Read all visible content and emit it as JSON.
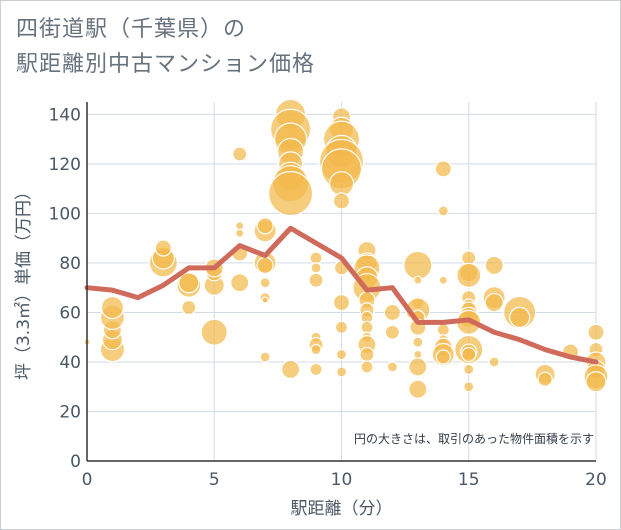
{
  "title": {
    "line1": "四街道駅（千葉県）の",
    "line2": "駅距離別中古マンション価格"
  },
  "colors": {
    "bubble": "#f2b84b",
    "bubble_stroke": "#ffffff",
    "line": "#d06a5a",
    "grid": "#d3dbe6",
    "axis": "#333333"
  },
  "chart_data": {
    "type": "scatter",
    "xlabel": "駅距離（分）",
    "ylabel": "坪（3.3㎡）単価（万円）",
    "xlim": [
      0,
      20
    ],
    "ylim": [
      0,
      145
    ],
    "xticks": [
      0,
      5,
      10,
      15,
      20
    ],
    "yticks": [
      0,
      20,
      40,
      60,
      80,
      100,
      120,
      140
    ],
    "grid": true,
    "note": "円の大きさは、取引のあった物件面積を示す",
    "line_series": {
      "x": [
        0,
        1,
        2,
        3,
        4,
        5,
        6,
        7,
        8,
        9,
        10,
        11,
        12,
        13,
        14,
        15,
        16,
        17,
        18,
        19,
        20
      ],
      "y": [
        70,
        69,
        66,
        71,
        78,
        78,
        87,
        83,
        94,
        88,
        82,
        69,
        70,
        56,
        56,
        57,
        52,
        49,
        45,
        42,
        40
      ]
    },
    "bubbles": [
      {
        "x": 0,
        "y": 48,
        "s": 3
      },
      {
        "x": 1,
        "y": 45,
        "s": 12
      },
      {
        "x": 1,
        "y": 49,
        "s": 10
      },
      {
        "x": 1,
        "y": 53,
        "s": 9
      },
      {
        "x": 1,
        "y": 58,
        "s": 12
      },
      {
        "x": 1,
        "y": 62,
        "s": 11
      },
      {
        "x": 3,
        "y": 80,
        "s": 14
      },
      {
        "x": 3,
        "y": 82,
        "s": 11
      },
      {
        "x": 3,
        "y": 86,
        "s": 8
      },
      {
        "x": 4,
        "y": 62,
        "s": 7
      },
      {
        "x": 4,
        "y": 71,
        "s": 12
      },
      {
        "x": 4,
        "y": 72,
        "s": 10
      },
      {
        "x": 5,
        "y": 52,
        "s": 13
      },
      {
        "x": 5,
        "y": 71,
        "s": 10
      },
      {
        "x": 5,
        "y": 76,
        "s": 8
      },
      {
        "x": 5,
        "y": 78,
        "s": 9
      },
      {
        "x": 6,
        "y": 124,
        "s": 7
      },
      {
        "x": 6,
        "y": 95,
        "s": 4
      },
      {
        "x": 6,
        "y": 92,
        "s": 4
      },
      {
        "x": 6,
        "y": 84,
        "s": 8
      },
      {
        "x": 6,
        "y": 72,
        "s": 9
      },
      {
        "x": 7,
        "y": 93,
        "s": 11
      },
      {
        "x": 7,
        "y": 95,
        "s": 8
      },
      {
        "x": 7,
        "y": 80,
        "s": 11
      },
      {
        "x": 7,
        "y": 79,
        "s": 8
      },
      {
        "x": 7,
        "y": 72,
        "s": 5
      },
      {
        "x": 7,
        "y": 66,
        "s": 5
      },
      {
        "x": 7,
        "y": 65,
        "s": 3
      },
      {
        "x": 7,
        "y": 42,
        "s": 5
      },
      {
        "x": 8,
        "y": 140,
        "s": 15
      },
      {
        "x": 8,
        "y": 134,
        "s": 20
      },
      {
        "x": 8,
        "y": 130,
        "s": 16
      },
      {
        "x": 8,
        "y": 125,
        "s": 13
      },
      {
        "x": 8,
        "y": 120,
        "s": 12
      },
      {
        "x": 8,
        "y": 115,
        "s": 14
      },
      {
        "x": 8,
        "y": 112,
        "s": 18
      },
      {
        "x": 8,
        "y": 108,
        "s": 22
      },
      {
        "x": 8,
        "y": 37,
        "s": 9
      },
      {
        "x": 9,
        "y": 82,
        "s": 6
      },
      {
        "x": 9,
        "y": 78,
        "s": 5
      },
      {
        "x": 9,
        "y": 73,
        "s": 7
      },
      {
        "x": 9,
        "y": 50,
        "s": 5
      },
      {
        "x": 9,
        "y": 47,
        "s": 7
      },
      {
        "x": 9,
        "y": 45,
        "s": 5
      },
      {
        "x": 9,
        "y": 37,
        "s": 6
      },
      {
        "x": 10,
        "y": 139,
        "s": 9
      },
      {
        "x": 10,
        "y": 134,
        "s": 12
      },
      {
        "x": 10,
        "y": 130,
        "s": 18
      },
      {
        "x": 10,
        "y": 125,
        "s": 16
      },
      {
        "x": 10,
        "y": 121,
        "s": 22
      },
      {
        "x": 10,
        "y": 118,
        "s": 20
      },
      {
        "x": 10,
        "y": 112,
        "s": 12
      },
      {
        "x": 10,
        "y": 105,
        "s": 8
      },
      {
        "x": 10,
        "y": 78,
        "s": 7
      },
      {
        "x": 10,
        "y": 64,
        "s": 8
      },
      {
        "x": 10,
        "y": 54,
        "s": 6
      },
      {
        "x": 10,
        "y": 43,
        "s": 5
      },
      {
        "x": 10,
        "y": 36,
        "s": 5
      },
      {
        "x": 11,
        "y": 85,
        "s": 9
      },
      {
        "x": 11,
        "y": 80,
        "s": 10
      },
      {
        "x": 11,
        "y": 78,
        "s": 13
      },
      {
        "x": 11,
        "y": 74,
        "s": 11
      },
      {
        "x": 11,
        "y": 70,
        "s": 14
      },
      {
        "x": 11,
        "y": 65,
        "s": 8
      },
      {
        "x": 11,
        "y": 61,
        "s": 7
      },
      {
        "x": 11,
        "y": 58,
        "s": 6
      },
      {
        "x": 11,
        "y": 54,
        "s": 6
      },
      {
        "x": 11,
        "y": 50,
        "s": 5
      },
      {
        "x": 11,
        "y": 47,
        "s": 9
      },
      {
        "x": 11,
        "y": 43,
        "s": 7
      },
      {
        "x": 11,
        "y": 38,
        "s": 6
      },
      {
        "x": 12,
        "y": 60,
        "s": 8
      },
      {
        "x": 12,
        "y": 52,
        "s": 7
      },
      {
        "x": 12,
        "y": 38,
        "s": 5
      },
      {
        "x": 13,
        "y": 79,
        "s": 14
      },
      {
        "x": 13,
        "y": 73,
        "s": 4
      },
      {
        "x": 13,
        "y": 64,
        "s": 6
      },
      {
        "x": 13,
        "y": 61,
        "s": 12
      },
      {
        "x": 13,
        "y": 58,
        "s": 7
      },
      {
        "x": 13,
        "y": 54,
        "s": 8
      },
      {
        "x": 13,
        "y": 48,
        "s": 5
      },
      {
        "x": 13,
        "y": 43,
        "s": 4
      },
      {
        "x": 13,
        "y": 38,
        "s": 9
      },
      {
        "x": 13,
        "y": 29,
        "s": 9
      },
      {
        "x": 14,
        "y": 118,
        "s": 8
      },
      {
        "x": 14,
        "y": 101,
        "s": 5
      },
      {
        "x": 14,
        "y": 73,
        "s": 4
      },
      {
        "x": 14,
        "y": 53,
        "s": 6
      },
      {
        "x": 14,
        "y": 49,
        "s": 5
      },
      {
        "x": 14,
        "y": 46,
        "s": 9
      },
      {
        "x": 14,
        "y": 43,
        "s": 11
      },
      {
        "x": 14,
        "y": 42,
        "s": 7
      },
      {
        "x": 15,
        "y": 82,
        "s": 7
      },
      {
        "x": 15,
        "y": 76,
        "s": 9
      },
      {
        "x": 15,
        "y": 75,
        "s": 12
      },
      {
        "x": 15,
        "y": 66,
        "s": 7
      },
      {
        "x": 15,
        "y": 63,
        "s": 6
      },
      {
        "x": 15,
        "y": 61,
        "s": 8
      },
      {
        "x": 15,
        "y": 58,
        "s": 10
      },
      {
        "x": 15,
        "y": 56,
        "s": 12
      },
      {
        "x": 15,
        "y": 45,
        "s": 14
      },
      {
        "x": 15,
        "y": 44,
        "s": 8
      },
      {
        "x": 15,
        "y": 43,
        "s": 7
      },
      {
        "x": 15,
        "y": 37,
        "s": 5
      },
      {
        "x": 15,
        "y": 30,
        "s": 5
      },
      {
        "x": 16,
        "y": 79,
        "s": 9
      },
      {
        "x": 16,
        "y": 66,
        "s": 11
      },
      {
        "x": 16,
        "y": 64,
        "s": 9
      },
      {
        "x": 16,
        "y": 40,
        "s": 5
      },
      {
        "x": 17,
        "y": 60,
        "s": 16
      },
      {
        "x": 17,
        "y": 58,
        "s": 10
      },
      {
        "x": 18,
        "y": 35,
        "s": 10
      },
      {
        "x": 18,
        "y": 33,
        "s": 7
      },
      {
        "x": 19,
        "y": 44,
        "s": 8
      },
      {
        "x": 20,
        "y": 52,
        "s": 8
      },
      {
        "x": 20,
        "y": 45,
        "s": 7
      },
      {
        "x": 20,
        "y": 40,
        "s": 10
      },
      {
        "x": 20,
        "y": 37,
        "s": 9
      },
      {
        "x": 20,
        "y": 34,
        "s": 12
      },
      {
        "x": 20,
        "y": 32,
        "s": 10
      }
    ]
  }
}
